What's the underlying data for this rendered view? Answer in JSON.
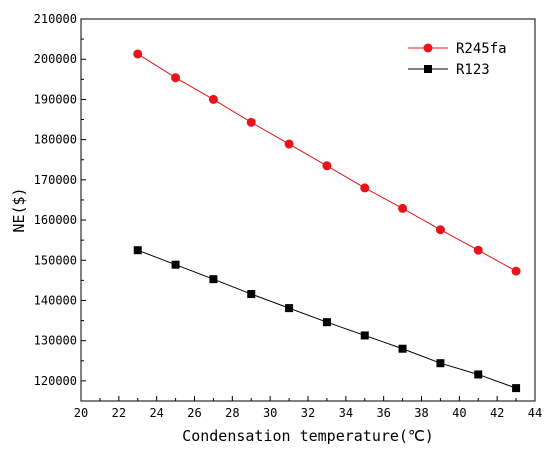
{
  "chart_data": {
    "type": "line",
    "xlabel": "Condensation temperature(℃)",
    "ylabel": "NE($)",
    "xlim": [
      20,
      44
    ],
    "ylim": [
      115000,
      210000
    ],
    "xticks": [
      20,
      22,
      24,
      26,
      28,
      30,
      32,
      34,
      36,
      38,
      40,
      42,
      44
    ],
    "yticks": [
      120000,
      130000,
      140000,
      150000,
      160000,
      170000,
      180000,
      190000,
      200000,
      210000
    ],
    "grid": false,
    "legend_position": "top-right",
    "x": [
      23,
      25,
      27,
      29,
      31,
      33,
      35,
      37,
      39,
      41,
      43
    ],
    "series": [
      {
        "name": "R245fa",
        "color": "#e8141a",
        "marker": "circle",
        "values": [
          201300,
          195400,
          190000,
          184300,
          178900,
          173500,
          168000,
          162900,
          157600,
          152500,
          147300
        ]
      },
      {
        "name": "R123",
        "color": "#000000",
        "marker": "square",
        "values": [
          152500,
          148900,
          145300,
          141600,
          138100,
          134600,
          131300,
          128000,
          124400,
          121600,
          118200
        ]
      }
    ]
  }
}
